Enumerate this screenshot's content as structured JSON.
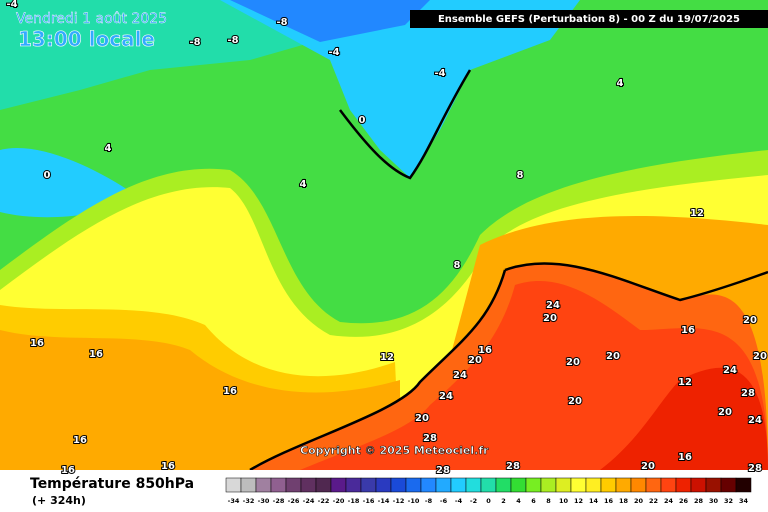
{
  "header": {
    "date": "Vendredi 1 août 2025",
    "time": "13:00 locale",
    "model": "Ensemble GEFS  (Perturbation 8)  -  00 Z du 19/07/2025"
  },
  "footer": {
    "variable": "Température 850hPa",
    "lead": "(+ 324h)"
  },
  "copyright": "Copyright © 2025 Meteociel.fr",
  "contours": [
    -4,
    -8,
    -8,
    -8,
    -4,
    -4,
    0,
    0,
    4,
    4,
    4,
    8,
    8,
    12,
    12,
    16,
    16,
    16,
    16,
    16,
    16,
    16,
    16,
    16,
    20,
    20,
    20,
    20,
    20,
    20,
    20,
    20,
    20,
    20,
    24,
    24,
    24,
    24,
    24,
    28,
    28,
    28,
    28,
    28,
    12
  ],
  "legend": {
    "values": [
      -34,
      -32,
      -30,
      -28,
      -26,
      -24,
      -22,
      -20,
      -18,
      -16,
      -14,
      -12,
      -10,
      -8,
      -6,
      -4,
      -2,
      0,
      2,
      4,
      6,
      8,
      10,
      12,
      14,
      16,
      18,
      20,
      22,
      24,
      26,
      28,
      30,
      32,
      34
    ],
    "colors": [
      "#d8d8d8",
      "#bdbdbd",
      "#a080a0",
      "#906090",
      "#704070",
      "#603060",
      "#502850",
      "#5a1a8a",
      "#4a2a9a",
      "#3a3aaa",
      "#2a3ac0",
      "#1a4ad8",
      "#1a6aee",
      "#2288ff",
      "#22aaff",
      "#22ccff",
      "#22dddd",
      "#22ddaa",
      "#22dd66",
      "#33dd33",
      "#77ee22",
      "#aaee22",
      "#ddee22",
      "#ffff33",
      "#ffee22",
      "#ffcc00",
      "#ffaa00",
      "#ff8800",
      "#ff6611",
      "#ff4411",
      "#ee2200",
      "#cc1100",
      "#991100",
      "#660000",
      "#220000"
    ]
  }
}
